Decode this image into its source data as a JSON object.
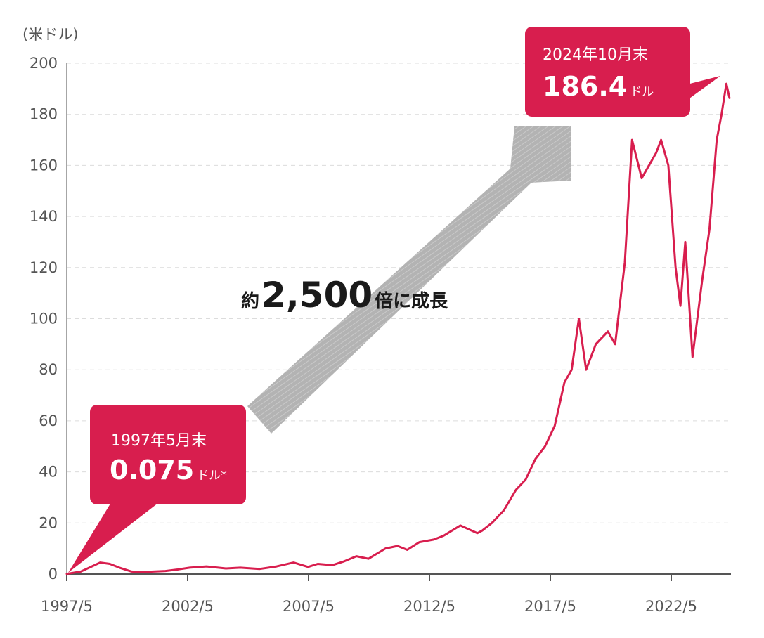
{
  "chart_data": {
    "type": "line",
    "ylabel": "(米ドル)",
    "ylim": [
      0,
      200
    ],
    "yticks": [
      0,
      20,
      40,
      60,
      80,
      100,
      120,
      140,
      160,
      180,
      200
    ],
    "xticks": [
      "1997/5",
      "2002/5",
      "2007/5",
      "2012/5",
      "2017/5",
      "2022/5"
    ],
    "grid": true,
    "line_color": "#d81e4e",
    "series": [
      {
        "x": [
          1997.42,
          1998.0,
          1998.8,
          1999.2,
          1999.6,
          2000.1,
          2000.5,
          2001.0,
          2001.5,
          2002.0,
          2002.5,
          2003.2,
          2004.0,
          2004.6,
          2005.4,
          2006.1,
          2006.8,
          2007.4,
          2007.8,
          2008.4,
          2008.9,
          2009.4,
          2009.9,
          2010.6,
          2011.1,
          2011.5,
          2012.0,
          2012.6,
          2013.0,
          2013.7,
          2014.4,
          2014.6,
          2015.0,
          2015.5,
          2016.0,
          2016.4,
          2016.8,
          2017.2,
          2017.6,
          2018.0,
          2018.3,
          2018.6,
          2018.9,
          2019.3,
          2019.8,
          2020.1,
          2020.5,
          2020.8,
          2021.2,
          2021.5,
          2021.8,
          2022.0,
          2022.3,
          2022.6,
          2022.8,
          2023.0,
          2023.3,
          2023.7,
          2024.0,
          2024.3,
          2024.5,
          2024.7,
          2024.83
        ],
        "values": [
          0.075,
          1.0,
          4.5,
          4.0,
          2.5,
          1.0,
          0.8,
          1.0,
          1.2,
          1.8,
          2.5,
          3.0,
          2.2,
          2.5,
          2.0,
          3.0,
          4.5,
          2.8,
          4.0,
          3.5,
          5.0,
          7.0,
          6.0,
          10.0,
          11.0,
          9.5,
          12.5,
          13.5,
          15.0,
          19.0,
          16.0,
          17.0,
          20.0,
          25.0,
          33.0,
          37.0,
          45.0,
          50.0,
          58.0,
          75.0,
          80.0,
          100.0,
          80.0,
          90.0,
          95.0,
          90.0,
          122.0,
          170.0,
          155.0,
          160.0,
          165.0,
          170.0,
          160.0,
          120.0,
          105.0,
          130.0,
          85.0,
          115.0,
          135.0,
          170.0,
          180.0,
          192.0,
          186.4
        ]
      }
    ],
    "annotations": {
      "start": {
        "date": "1997年5月末",
        "value": "0.075",
        "unit": "ドル*"
      },
      "end": {
        "date": "2024年10月末",
        "value": "186.4",
        "unit": "ドル"
      },
      "growth": {
        "prefix": "約",
        "number": "2,500",
        "suffix": "倍に成長"
      }
    }
  }
}
